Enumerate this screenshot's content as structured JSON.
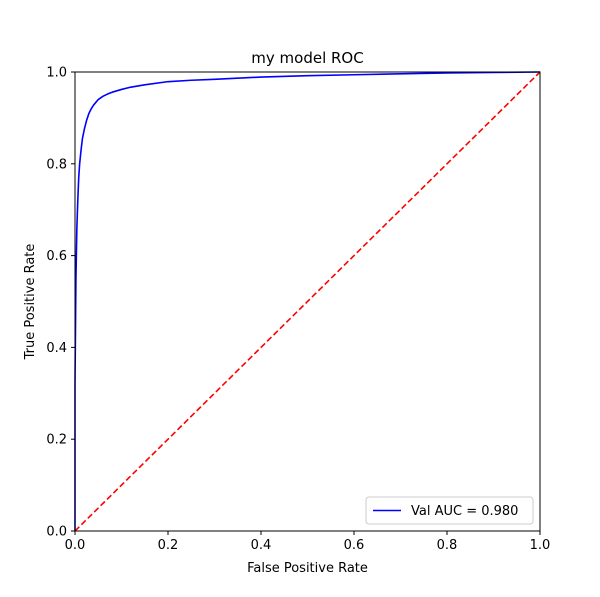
{
  "chart_data": {
    "type": "line",
    "title": "my model ROC",
    "xlabel": "False Positive Rate",
    "ylabel": "True Positive Rate",
    "xlim": [
      0,
      1
    ],
    "ylim": [
      0,
      1
    ],
    "xticks": [
      "0.0",
      "0.2",
      "0.4",
      "0.6",
      "0.8",
      "1.0"
    ],
    "yticks": [
      "0.0",
      "0.2",
      "0.4",
      "0.6",
      "0.8",
      "1.0"
    ],
    "grid": false,
    "legend_position": "lower-right",
    "series": [
      {
        "name": "Val AUC = 0.980",
        "style": "solid",
        "color": "#0000ff",
        "x": [
          0.0,
          0.0,
          0.002,
          0.004,
          0.006,
          0.008,
          0.01,
          0.013,
          0.016,
          0.02,
          0.025,
          0.03,
          0.035,
          0.04,
          0.05,
          0.06,
          0.07,
          0.08,
          0.1,
          0.12,
          0.15,
          0.2,
          0.25,
          0.3,
          0.4,
          0.5,
          0.6,
          0.7,
          0.8,
          0.9,
          1.0
        ],
        "y": [
          0.0,
          0.32,
          0.55,
          0.66,
          0.72,
          0.77,
          0.8,
          0.83,
          0.855,
          0.875,
          0.895,
          0.91,
          0.92,
          0.928,
          0.94,
          0.947,
          0.952,
          0.956,
          0.962,
          0.967,
          0.972,
          0.979,
          0.982,
          0.984,
          0.989,
          0.992,
          0.994,
          0.996,
          0.998,
          0.999,
          1.0
        ]
      },
      {
        "name": "",
        "style": "dashed",
        "color": "#ff0000",
        "x": [
          0,
          1
        ],
        "y": [
          0,
          1
        ]
      }
    ]
  }
}
